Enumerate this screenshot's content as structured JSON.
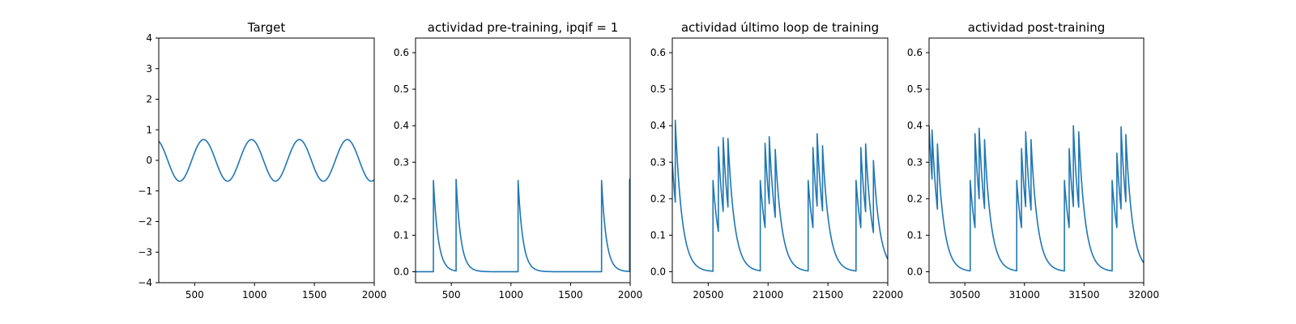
{
  "chart_data": [
    {
      "type": "line",
      "title": "Target",
      "xlabel": "",
      "ylabel": "",
      "xlim": [
        200,
        2000
      ],
      "ylim": [
        -4,
        4
      ],
      "xticks": [
        500,
        1000,
        1500,
        2000
      ],
      "yticks": [
        -4,
        -3,
        -2,
        -1,
        0,
        1,
        2,
        3,
        4
      ],
      "grid": false,
      "color": "#1f77b4",
      "series": [
        {
          "curve": "sine",
          "amplitude": 0.68,
          "period": 400,
          "first_peak_x": 575,
          "x_range": [
            200,
            2000
          ]
        }
      ]
    },
    {
      "type": "line",
      "title": "actividad pre-training, ipqif = 1",
      "xlabel": "",
      "ylabel": "",
      "xlim": [
        200,
        2000
      ],
      "ylim": [
        -0.03,
        0.64
      ],
      "xticks": [
        500,
        1000,
        1500,
        2000
      ],
      "yticks": [
        0.0,
        0.1,
        0.2,
        0.3,
        0.4,
        0.5,
        0.6
      ],
      "grid": false,
      "color": "#1f77b4",
      "series": [
        {
          "curve": "spike-decay",
          "baseline": 0,
          "decay_tau": 40,
          "x_range": [
            200,
            2000
          ],
          "spikes": [
            {
              "x": 350,
              "value": 0.25
            },
            {
              "x": 540,
              "value": 0.253
            },
            {
              "x": 1060,
              "value": 0.25
            },
            {
              "x": 1760,
              "value": 0.25
            },
            {
              "x": 1995,
              "value": 0.253
            }
          ]
        }
      ]
    },
    {
      "type": "line",
      "title": "actividad último loop de training",
      "xlabel": "",
      "ylabel": "",
      "xlim": [
        20200,
        22000
      ],
      "ylim": [
        -0.03,
        0.64
      ],
      "xticks": [
        20500,
        21000,
        21500,
        22000
      ],
      "yticks": [
        0.0,
        0.1,
        0.2,
        0.3,
        0.4,
        0.5,
        0.6
      ],
      "grid": false,
      "color": "#1f77b4",
      "series": [
        {
          "curve": "spike-decay",
          "baseline": 0,
          "decay_tau": 55,
          "start_value": 0.3,
          "x_range": [
            20200,
            22000
          ],
          "spikes": [
            {
              "x": 20225,
              "value": 0.415
            },
            {
              "x": 20540,
              "value": 0.25
            },
            {
              "x": 20585,
              "value": 0.342
            },
            {
              "x": 20625,
              "value": 0.367
            },
            {
              "x": 20665,
              "value": 0.365
            },
            {
              "x": 20935,
              "value": 0.25
            },
            {
              "x": 20975,
              "value": 0.352
            },
            {
              "x": 21010,
              "value": 0.37
            },
            {
              "x": 21060,
              "value": 0.335
            },
            {
              "x": 21335,
              "value": 0.25
            },
            {
              "x": 21375,
              "value": 0.34
            },
            {
              "x": 21410,
              "value": 0.378
            },
            {
              "x": 21455,
              "value": 0.345
            },
            {
              "x": 21735,
              "value": 0.25
            },
            {
              "x": 21775,
              "value": 0.34
            },
            {
              "x": 21815,
              "value": 0.35
            },
            {
              "x": 21880,
              "value": 0.305
            }
          ]
        }
      ]
    },
    {
      "type": "line",
      "title": "actividad post-training",
      "xlabel": "",
      "ylabel": "",
      "xlim": [
        30200,
        32000
      ],
      "ylim": [
        -0.03,
        0.64
      ],
      "xticks": [
        30500,
        31000,
        31500,
        32000
      ],
      "yticks": [
        0.0,
        0.1,
        0.2,
        0.3,
        0.4,
        0.5,
        0.6
      ],
      "grid": false,
      "color": "#1f77b4",
      "series": [
        {
          "curve": "spike-decay",
          "baseline": 0,
          "decay_tau": 55,
          "start_value": 0.4,
          "x_range": [
            30200,
            32000
          ],
          "spikes": [
            {
              "x": 30225,
              "value": 0.388
            },
            {
              "x": 30270,
              "value": 0.35
            },
            {
              "x": 30545,
              "value": 0.25
            },
            {
              "x": 30585,
              "value": 0.378
            },
            {
              "x": 30620,
              "value": 0.393
            },
            {
              "x": 30665,
              "value": 0.362
            },
            {
              "x": 30935,
              "value": 0.25
            },
            {
              "x": 30975,
              "value": 0.337
            },
            {
              "x": 31010,
              "value": 0.383
            },
            {
              "x": 31055,
              "value": 0.362
            },
            {
              "x": 31335,
              "value": 0.25
            },
            {
              "x": 31375,
              "value": 0.337
            },
            {
              "x": 31410,
              "value": 0.4
            },
            {
              "x": 31455,
              "value": 0.383
            },
            {
              "x": 31735,
              "value": 0.25
            },
            {
              "x": 31775,
              "value": 0.325
            },
            {
              "x": 31810,
              "value": 0.397
            },
            {
              "x": 31850,
              "value": 0.376
            }
          ]
        }
      ]
    }
  ]
}
